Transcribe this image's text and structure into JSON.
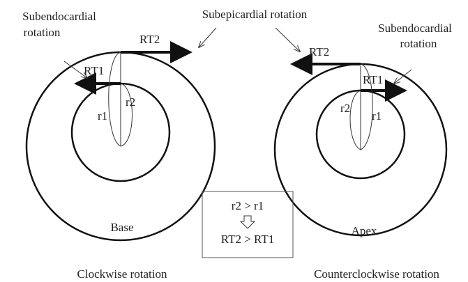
{
  "top_label": "Subepicardial rotation",
  "left": {
    "annotation": [
      "Subendocardial",
      "rotation"
    ],
    "outer_arrow": "RT2",
    "inner_arrow": "RT1",
    "inner_radius": "r1",
    "outer_radius": "r2",
    "name": "Base",
    "caption": "Clockwise rotation"
  },
  "right": {
    "annotation": [
      "Subendocardial",
      "rotation"
    ],
    "outer_arrow": "RT2",
    "inner_arrow": "RT1",
    "inner_radius": "r1",
    "outer_radius": "r2",
    "name": "Apex",
    "caption": "Counterclockwise rotation"
  },
  "box": {
    "line1": "r2 > r1",
    "line2": "RT2 > RT1"
  }
}
